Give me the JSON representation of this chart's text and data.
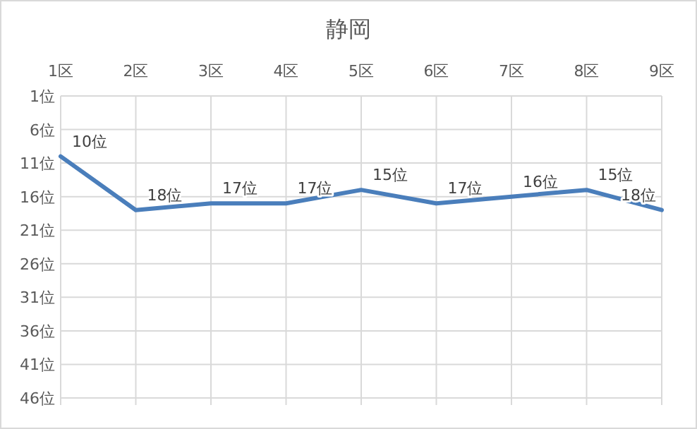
{
  "chart_data": {
    "type": "line",
    "title": "静岡",
    "categories": [
      "1区",
      "2区",
      "3区",
      "4区",
      "5区",
      "6区",
      "7区",
      "8区",
      "9区"
    ],
    "series": [
      {
        "color": "#4a7ebb",
        "values": [
          10,
          18,
          17,
          17,
          15,
          17,
          16,
          15,
          18
        ]
      }
    ],
    "value_labels": [
      "10位",
      "18位",
      "17位",
      "17位",
      "15位",
      "17位",
      "16位",
      "15位",
      "18位"
    ],
    "ylim": [
      46,
      1
    ],
    "yticks": [
      {
        "value": 1,
        "label": "1位"
      },
      {
        "value": 6,
        "label": "6位"
      },
      {
        "value": 11,
        "label": "11位"
      },
      {
        "value": 16,
        "label": "16位"
      },
      {
        "value": 21,
        "label": "21位"
      },
      {
        "value": 26,
        "label": "26位"
      },
      {
        "value": 31,
        "label": "31位"
      },
      {
        "value": 36,
        "label": "36位"
      },
      {
        "value": 41,
        "label": "41位"
      },
      {
        "value": 46,
        "label": "46位"
      }
    ],
    "grid": true,
    "marker": "none",
    "line_style": "solid"
  }
}
